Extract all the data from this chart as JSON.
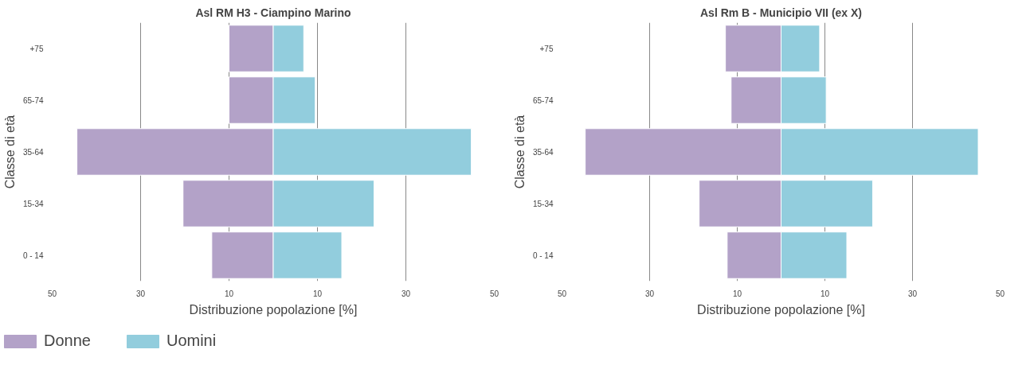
{
  "chart_data": [
    {
      "type": "bar",
      "orientation": "horizontal",
      "stacked": true,
      "title": "Asl RM H3 - Ciampino Marino",
      "xlabel": "Distribuzione popolazione [%]",
      "ylabel": "Classe di età",
      "categories": [
        "+75",
        "65-74",
        "35-64",
        "15-34",
        "0 - 14"
      ],
      "series": [
        {
          "name": "Donne",
          "color": "#b3a2c8",
          "values": [
            -10,
            -10,
            -44.4,
            -20.4,
            -13.9
          ]
        },
        {
          "name": "Uomini",
          "color": "#92cddd",
          "values": [
            6.9,
            9.5,
            44.8,
            22.8,
            15.5
          ]
        }
      ],
      "xlim": [
        -50,
        50
      ],
      "xticks": [
        {
          "value": -50,
          "label": "50"
        },
        {
          "value": -30,
          "label": "30"
        },
        {
          "value": -10,
          "label": "10"
        },
        10,
        30,
        50
      ],
      "grid": "x",
      "legend": "bottom"
    },
    {
      "type": "bar",
      "orientation": "horizontal",
      "stacked": true,
      "title": "Asl Rm B - Municipio VII (ex X)",
      "xlabel": "Distribuzione popolazione [%]",
      "ylabel": "Classe di età",
      "categories": [
        "+75",
        "65-74",
        "35-64",
        "15-34",
        "0 - 14"
      ],
      "series": [
        {
          "color": "#b3a2c8",
          "values": [
            -12.7,
            -11.4,
            -44.7,
            -18.7,
            -12.3
          ]
        },
        {
          "color": "#92cddd",
          "values": [
            8.8,
            10.3,
            45,
            20.9,
            15
          ]
        }
      ],
      "xlim": [
        -50,
        50
      ],
      "xticks": [
        {
          "value": -50,
          "label": "50"
        },
        {
          "value": -30,
          "label": "30"
        },
        {
          "value": -10,
          "label": "10"
        },
        10,
        30,
        50
      ],
      "grid": "x",
      "legend": false
    }
  ]
}
